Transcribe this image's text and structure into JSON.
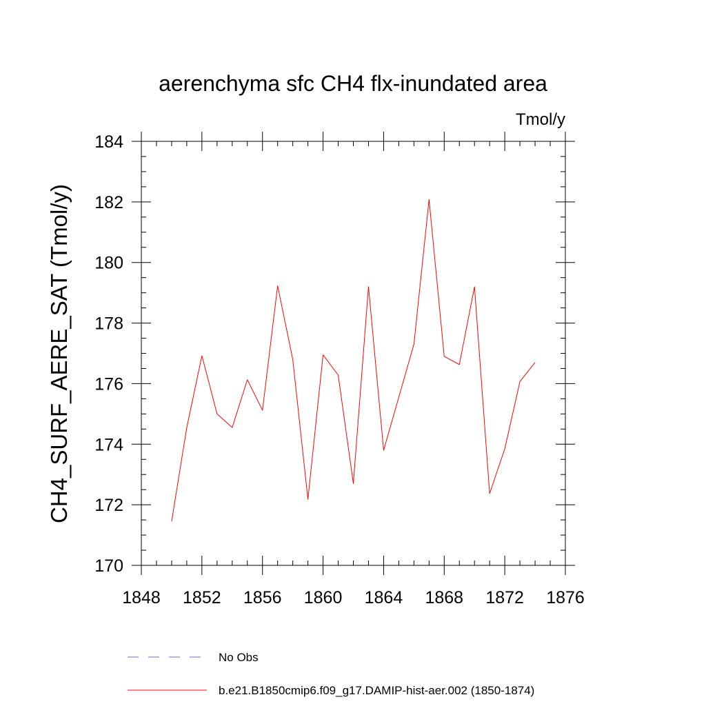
{
  "chart_data": {
    "type": "line",
    "title": "aerenchyma sfc CH4 flx-inundated area",
    "units": "Tmol/y",
    "xlabel": "",
    "ylabel": "CH4_SURF_AERE_SAT  (Tmol/y)",
    "xlim": [
      1848,
      1876
    ],
    "ylim": [
      170,
      184
    ],
    "xticks": [
      1848,
      1852,
      1856,
      1860,
      1864,
      1868,
      1872,
      1876
    ],
    "yticks": [
      170,
      172,
      174,
      176,
      178,
      180,
      182,
      184
    ],
    "grid": false,
    "legend_position": "bottom",
    "series": [
      {
        "name": "b.e21.B1850cmip6.f09_g17.DAMIP-hist-aer.002 (1850-1874)",
        "color": "#ff0000",
        "style": "solid",
        "x": [
          1850,
          1851,
          1852,
          1853,
          1854,
          1855,
          1856,
          1857,
          1858,
          1859,
          1860,
          1861,
          1862,
          1863,
          1864,
          1865,
          1866,
          1867,
          1868,
          1869,
          1870,
          1871,
          1872,
          1873,
          1874
        ],
        "y": [
          171.45,
          174.55,
          176.92,
          175.0,
          174.55,
          176.13,
          175.12,
          179.23,
          176.8,
          172.18,
          176.95,
          176.28,
          172.7,
          179.2,
          173.8,
          175.55,
          177.3,
          182.08,
          176.9,
          176.63,
          179.2,
          172.37,
          173.85,
          176.07,
          176.7
        ]
      }
    ],
    "legend": [
      {
        "label": "No Obs",
        "color": "#6a6ab8",
        "style": "dashed"
      },
      {
        "label": "b.e21.B1850cmip6.f09_g17.DAMIP-hist-aer.002 (1850-1874)",
        "color": "#ff0000",
        "style": "solid"
      }
    ]
  }
}
